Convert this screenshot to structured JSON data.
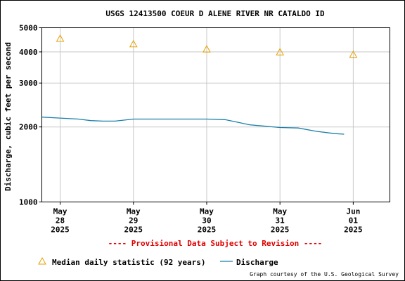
{
  "chart_data": {
    "type": "line",
    "title": "USGS 12413500 COEUR D ALENE RIVER NR CATALDO ID",
    "ylabel": "Discharge, cubic feet per second",
    "xlabel": "",
    "y_scale": "log",
    "ylim": [
      1000,
      5000
    ],
    "y_ticks": [
      {
        "value": 1000,
        "label": "1000"
      },
      {
        "value": 2000,
        "label": "2000"
      },
      {
        "value": 3000,
        "label": "3000"
      },
      {
        "value": 4000,
        "label": "4000"
      },
      {
        "value": 5000,
        "label": "5000"
      }
    ],
    "xlim": [
      "2025-05-27 18:00",
      "2025-06-01 12:00"
    ],
    "x_ticks": [
      {
        "date": "2025-05-28 00:00",
        "month": "May",
        "day": "28",
        "year": "2025"
      },
      {
        "date": "2025-05-29 00:00",
        "month": "May",
        "day": "29",
        "year": "2025"
      },
      {
        "date": "2025-05-30 00:00",
        "month": "May",
        "day": "30",
        "year": "2025"
      },
      {
        "date": "2025-05-31 00:00",
        "month": "May",
        "day": "31",
        "year": "2025"
      },
      {
        "date": "2025-06-01 00:00",
        "month": "Jun",
        "day": "01",
        "year": "2025"
      }
    ],
    "grid": true,
    "series": [
      {
        "name": "Median daily statistic (92 years)",
        "kind": "marker",
        "marker": "triangle",
        "color": "#e8a000",
        "points": [
          {
            "x": "2025-05-28 00:00",
            "y": 4520
          },
          {
            "x": "2025-05-29 00:00",
            "y": 4300
          },
          {
            "x": "2025-05-30 00:00",
            "y": 4100
          },
          {
            "x": "2025-05-31 00:00",
            "y": 3990
          },
          {
            "x": "2025-06-01 00:00",
            "y": 3900
          }
        ]
      },
      {
        "name": "Discharge",
        "kind": "line",
        "color": "#1a7fa8",
        "points": [
          {
            "x": "2025-05-27 18:00",
            "y": 2190
          },
          {
            "x": "2025-05-28 00:00",
            "y": 2170
          },
          {
            "x": "2025-05-28 06:00",
            "y": 2150
          },
          {
            "x": "2025-05-28 10:00",
            "y": 2120
          },
          {
            "x": "2025-05-28 14:00",
            "y": 2110
          },
          {
            "x": "2025-05-28 18:00",
            "y": 2110
          },
          {
            "x": "2025-05-29 00:00",
            "y": 2150
          },
          {
            "x": "2025-05-29 06:00",
            "y": 2150
          },
          {
            "x": "2025-05-29 12:00",
            "y": 2150
          },
          {
            "x": "2025-05-29 18:00",
            "y": 2150
          },
          {
            "x": "2025-05-30 00:00",
            "y": 2150
          },
          {
            "x": "2025-05-30 06:00",
            "y": 2140
          },
          {
            "x": "2025-05-30 10:00",
            "y": 2090
          },
          {
            "x": "2025-05-30 14:00",
            "y": 2040
          },
          {
            "x": "2025-05-30 18:00",
            "y": 2020
          },
          {
            "x": "2025-05-31 00:00",
            "y": 1990
          },
          {
            "x": "2025-05-31 06:00",
            "y": 1980
          },
          {
            "x": "2025-05-31 12:00",
            "y": 1920
          },
          {
            "x": "2025-05-31 18:00",
            "y": 1880
          },
          {
            "x": "2025-05-31 21:00",
            "y": 1870
          }
        ]
      }
    ]
  },
  "notice": "---- Provisional Data Subject to Revision ----",
  "legend": {
    "median_label": "Median daily statistic (92 years)",
    "discharge_label": "Discharge"
  },
  "credit": "Graph courtesy of the U.S. Geological Survey"
}
